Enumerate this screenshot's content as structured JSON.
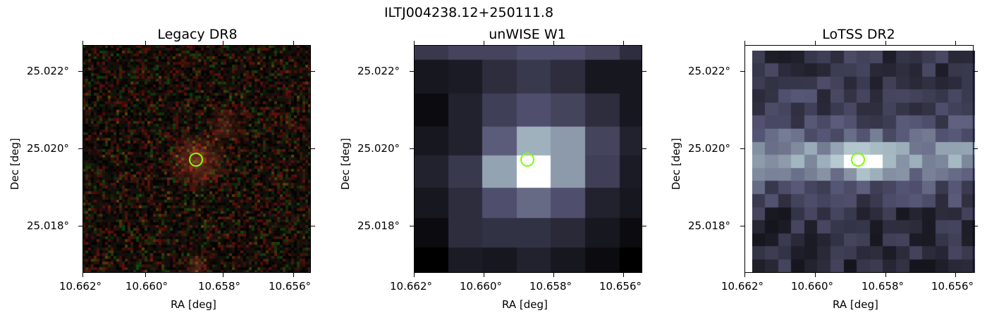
{
  "figure": {
    "suptitle": "ILTJ004238.12+250111.8"
  },
  "panels": [
    {
      "title": "Legacy DR8",
      "xlabel": "RA [deg]",
      "ylabel": "Dec [deg]",
      "xticks": [
        "10.662°",
        "10.660°",
        "10.658°",
        "10.656°"
      ],
      "yticks": [
        "25.022°",
        "25.020°",
        "25.018°"
      ],
      "style": "optical-rgb-noise"
    },
    {
      "title": "unWISE W1",
      "xlabel": "RA [deg]",
      "ylabel": "Dec [deg]",
      "xticks": [
        "10.662°",
        "10.660°",
        "10.658°",
        "10.656°"
      ],
      "yticks": [
        "25.022°",
        "25.020°",
        "25.018°"
      ],
      "style": "infrared-bone-coarse"
    },
    {
      "title": "LoTSS DR2",
      "xlabel": "RA [deg]",
      "ylabel": "Dec [deg]",
      "xticks": [
        "10.662°",
        "10.660°",
        "10.658°",
        "10.656°"
      ],
      "yticks": [
        "25.022°",
        "25.020°",
        "25.018°"
      ],
      "style": "radio-bone-medium"
    }
  ],
  "marker": {
    "shape": "circle",
    "color": "#7fff00"
  }
}
